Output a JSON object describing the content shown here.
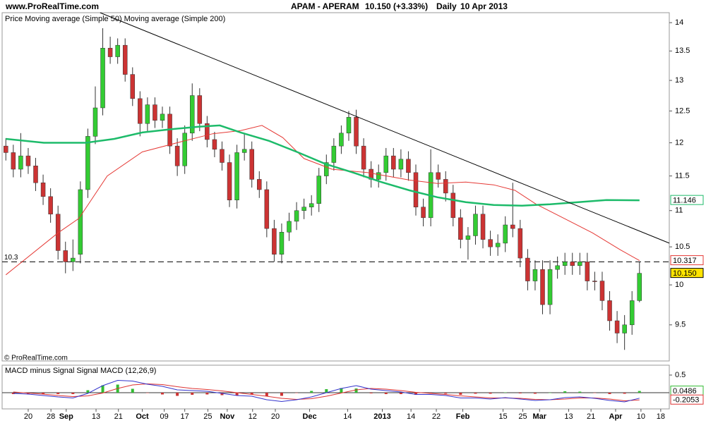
{
  "header": {
    "site": "www.ProRealTime.com",
    "instrument": "APAM - APERAM",
    "quote": "10.150 (+3.33%)",
    "period": "Daily",
    "date": "10 Apr 2013"
  },
  "copyright": "© ProRealTime.com",
  "chart_data": [
    {
      "type": "candlestick",
      "log_scale": true,
      "xlim": [
        -1,
        178
      ],
      "ylim": [
        9.07,
        14.18
      ],
      "yticks": [
        14,
        13.5,
        13,
        12.5,
        12,
        11.5,
        11,
        10.5,
        10,
        9.5
      ],
      "support_level": 10.3,
      "trendline": {
        "x": [
          25.3,
          178
        ],
        "values": [
          14.18,
          10.55
        ],
        "color": "#000000"
      },
      "candles": {
        "name": "Price",
        "up_color": "#33cc33",
        "down_color": "#cc3333",
        "last_color": "#ffe400",
        "last_label": "10.150",
        "x": [
          0,
          2,
          4,
          6,
          8,
          10,
          12,
          14,
          16,
          18,
          20,
          22,
          24,
          26,
          28,
          30,
          32,
          34,
          36,
          38,
          40,
          42,
          44,
          46,
          48,
          50,
          52,
          54,
          56,
          58,
          60,
          62,
          64,
          66,
          68,
          70,
          72,
          74,
          76,
          78,
          80,
          82,
          84,
          86,
          88,
          90,
          92,
          94,
          96,
          98,
          100,
          102,
          104,
          106,
          108,
          110,
          112,
          114,
          116,
          118,
          120,
          122,
          124,
          126,
          128,
          130,
          132,
          134,
          136,
          138,
          140,
          142,
          144,
          146,
          148,
          150,
          152,
          154,
          156,
          158,
          160,
          162,
          164,
          166,
          168,
          170
        ],
        "open": [
          11.95,
          11.85,
          11.6,
          11.8,
          11.65,
          11.4,
          11.2,
          10.95,
          10.45,
          10.3,
          10.4,
          11.3,
          12.1,
          12.55,
          13.55,
          13.4,
          13.6,
          13.1,
          12.7,
          12.3,
          12.6,
          12.35,
          12.45,
          11.95,
          11.65,
          12.15,
          12.75,
          12.3,
          12.05,
          11.9,
          11.7,
          11.15,
          11.85,
          11.9,
          11.45,
          11.3,
          10.75,
          10.4,
          10.7,
          10.85,
          11.0,
          11.05,
          11.1,
          11.5,
          11.7,
          11.95,
          12.15,
          12.4,
          11.95,
          11.6,
          11.45,
          11.55,
          11.8,
          11.6,
          11.75,
          11.55,
          11.05,
          10.9,
          11.55,
          11.45,
          11.25,
          10.9,
          10.6,
          10.65,
          10.95,
          10.6,
          10.5,
          10.55,
          10.8,
          10.75,
          10.35,
          10.05,
          10.2,
          9.75,
          10.2,
          10.25,
          10.3,
          10.25,
          10.3,
          10.05,
          10.05,
          9.8,
          9.55,
          9.4,
          9.5,
          9.8
        ],
        "high": [
          12.07,
          11.97,
          12.15,
          11.92,
          11.77,
          11.52,
          11.32,
          11.07,
          10.57,
          10.6,
          11.42,
          12.22,
          12.9,
          13.9,
          13.75,
          13.72,
          13.72,
          13.22,
          12.82,
          12.72,
          12.72,
          12.57,
          12.57,
          12.07,
          12.27,
          12.95,
          12.87,
          12.42,
          12.17,
          12.02,
          11.82,
          11.97,
          12.15,
          12.02,
          11.57,
          11.42,
          10.87,
          10.82,
          10.97,
          11.12,
          11.17,
          11.22,
          11.62,
          11.82,
          12.07,
          12.27,
          12.5,
          12.52,
          12.07,
          11.72,
          11.67,
          11.92,
          11.92,
          11.9,
          11.87,
          11.67,
          11.17,
          11.9,
          11.67,
          11.57,
          11.37,
          11.02,
          10.77,
          11.07,
          11.07,
          10.72,
          10.67,
          10.92,
          11.4,
          10.87,
          10.47,
          10.32,
          10.32,
          10.32,
          10.37,
          10.42,
          10.42,
          10.42,
          10.42,
          10.17,
          10.17,
          9.92,
          9.67,
          9.62,
          9.92,
          10.3
        ],
        "low": [
          11.73,
          11.48,
          11.48,
          11.53,
          11.28,
          11.08,
          10.83,
          10.33,
          10.15,
          10.18,
          10.28,
          11.18,
          11.98,
          12.43,
          13.28,
          13.28,
          12.98,
          12.58,
          12.1,
          12.18,
          12.23,
          12.23,
          11.83,
          11.5,
          11.53,
          12.03,
          12.18,
          11.93,
          11.78,
          11.58,
          11.05,
          11.03,
          11.73,
          11.33,
          11.18,
          10.63,
          10.3,
          10.28,
          10.58,
          10.73,
          10.88,
          10.93,
          10.98,
          11.38,
          11.58,
          11.83,
          12.03,
          11.83,
          11.48,
          11.33,
          11.33,
          11.43,
          11.48,
          11.48,
          11.43,
          10.93,
          10.78,
          10.78,
          11.33,
          11.13,
          10.78,
          10.48,
          10.33,
          10.53,
          10.48,
          10.38,
          10.38,
          10.43,
          10.63,
          10.23,
          9.93,
          9.93,
          9.63,
          9.63,
          10.08,
          10.13,
          10.13,
          10.13,
          9.93,
          9.93,
          9.68,
          9.43,
          9.28,
          9.2,
          9.38,
          9.78
        ],
        "close": [
          11.85,
          11.6,
          11.8,
          11.65,
          11.4,
          11.2,
          10.95,
          10.45,
          10.3,
          10.35,
          11.3,
          12.1,
          12.55,
          13.55,
          13.4,
          13.6,
          13.1,
          12.7,
          12.3,
          12.6,
          12.35,
          12.45,
          11.95,
          11.65,
          12.15,
          12.75,
          12.3,
          12.05,
          11.9,
          11.7,
          11.15,
          11.85,
          11.9,
          11.45,
          11.3,
          10.75,
          10.4,
          10.7,
          10.85,
          11.0,
          11.05,
          11.1,
          11.5,
          11.7,
          11.95,
          12.15,
          12.4,
          11.95,
          11.6,
          11.45,
          11.55,
          11.8,
          11.6,
          11.75,
          11.55,
          11.05,
          10.9,
          11.55,
          11.45,
          11.25,
          10.9,
          10.6,
          10.65,
          10.95,
          10.6,
          10.5,
          10.55,
          10.8,
          10.75,
          10.35,
          10.05,
          10.2,
          9.75,
          10.2,
          10.25,
          10.3,
          10.25,
          10.3,
          10.05,
          10.05,
          9.8,
          9.55,
          9.4,
          9.5,
          9.8,
          10.15
        ]
      },
      "series": [
        {
          "name": "Moving average (Simple 50)",
          "color": "#e53935",
          "line_width": 1,
          "show_last": true,
          "x": [
            0,
            14,
            19.6,
            27.2,
            36.6,
            47.9,
            55.5,
            63,
            68.7,
            74.3,
            80,
            87.5,
            97,
            108.3,
            115.8,
            123.4,
            130.9,
            136.6,
            142.3,
            149.8,
            157.4,
            164.9,
            170
          ],
          "values": [
            10.13,
            10.69,
            10.89,
            11.5,
            11.86,
            12.03,
            12.14,
            12.19,
            12.27,
            12.08,
            11.76,
            11.6,
            11.55,
            11.44,
            11.39,
            11.41,
            11.37,
            11.29,
            11.09,
            10.89,
            10.69,
            10.46,
            10.317
          ]
        },
        {
          "name": "Moving average (Simple 200)",
          "color": "#1dbb6a",
          "line_width": 2.5,
          "show_last": true,
          "x": [
            0,
            10.2,
            21.5,
            29.1,
            36.6,
            44.2,
            51.7,
            57.4,
            63,
            70.6,
            78.1,
            85.7,
            93.2,
            100.8,
            108.3,
            115.8,
            123.4,
            130.9,
            138.5,
            146,
            153.6,
            161.1,
            170
          ],
          "values": [
            12.06,
            12.0,
            12.0,
            12.06,
            12.16,
            12.21,
            12.25,
            12.27,
            12.16,
            12.03,
            11.86,
            11.68,
            11.55,
            11.41,
            11.29,
            11.19,
            11.12,
            11.08,
            11.07,
            11.09,
            11.12,
            11.15,
            11.146
          ]
        }
      ]
    },
    {
      "type": "macd",
      "xlim": [
        -1,
        178
      ],
      "ylim": [
        -0.46,
        0.78
      ],
      "yticks": [
        0.5
      ],
      "xticks": [
        {
          "value": 6,
          "label": "20"
        },
        {
          "value": 12.1,
          "label": "28"
        },
        {
          "value": 16.2,
          "label": "Sep"
        },
        {
          "value": 24.2,
          "label": "13"
        },
        {
          "value": 30.2,
          "label": "21"
        },
        {
          "value": 36.6,
          "label": "Oct"
        },
        {
          "value": 42.5,
          "label": "09"
        },
        {
          "value": 48,
          "label": "17"
        },
        {
          "value": 54.2,
          "label": "25"
        },
        {
          "value": 59.4,
          "label": "Nov"
        },
        {
          "value": 66.2,
          "label": "12"
        },
        {
          "value": 72.3,
          "label": "20"
        },
        {
          "value": 81.5,
          "label": "Dec"
        },
        {
          "value": 91.7,
          "label": "14"
        },
        {
          "value": 101,
          "label": "2013"
        },
        {
          "value": 108.7,
          "label": "14"
        },
        {
          "value": 115.5,
          "label": "22"
        },
        {
          "value": 122.6,
          "label": "Feb"
        },
        {
          "value": 133.4,
          "label": "15"
        },
        {
          "value": 138.7,
          "label": "25"
        },
        {
          "value": 143.2,
          "label": "Mar"
        },
        {
          "value": 151,
          "label": "13"
        },
        {
          "value": 157,
          "label": "21"
        },
        {
          "value": 163.6,
          "label": "Apr"
        },
        {
          "value": 170.4,
          "label": "10"
        },
        {
          "value": 175.7,
          "label": "18"
        }
      ],
      "x": [
        2,
        6,
        10,
        14,
        18,
        22,
        26,
        30,
        34,
        38,
        42,
        46,
        50,
        54,
        58,
        62,
        66,
        70,
        74,
        78,
        82,
        86,
        90,
        94,
        98,
        102,
        106,
        110,
        114,
        118,
        122,
        126,
        130,
        134,
        138,
        142,
        146,
        150,
        154,
        158,
        162,
        166,
        170
      ],
      "histogram": {
        "name": "MACD minus Signal",
        "up_color": "#33bb33",
        "down_color": "#cc3333",
        "show_last": true,
        "values": [
          -0.04,
          -0.03,
          -0.04,
          -0.04,
          -0.04,
          0.07,
          0.21,
          0.23,
          0.11,
          -0.01,
          -0.05,
          -0.09,
          -0.06,
          -0.05,
          -0.07,
          -0.08,
          -0.05,
          -0.1,
          -0.09,
          -0.01,
          0.05,
          0.1,
          0.13,
          0.12,
          -0.02,
          -0.04,
          -0.04,
          -0.06,
          -0.03,
          -0.03,
          -0.06,
          -0.03,
          -0.03,
          0.01,
          -0.02,
          -0.03,
          0.0,
          0.04,
          0.03,
          -0.01,
          -0.04,
          -0.03,
          0.0486
        ]
      },
      "series": [
        {
          "name": "Signal",
          "color": "#dd3333",
          "line_width": 1,
          "show_last": true,
          "values": [
            0.02,
            -0.01,
            -0.04,
            -0.08,
            -0.11,
            -0.09,
            -0.01,
            0.12,
            0.22,
            0.25,
            0.23,
            0.17,
            0.12,
            0.09,
            0.05,
            0.0,
            -0.05,
            -0.1,
            -0.16,
            -0.19,
            -0.17,
            -0.1,
            -0.01,
            0.08,
            0.12,
            0.1,
            0.06,
            0.01,
            -0.02,
            -0.05,
            -0.09,
            -0.12,
            -0.15,
            -0.15,
            -0.16,
            -0.19,
            -0.2,
            -0.18,
            -0.15,
            -0.15,
            -0.18,
            -0.23,
            -0.2053
          ]
        },
        {
          "name": "MACD (12,26,9)",
          "color": "#3333cc",
          "line_width": 1,
          "show_last": false,
          "values": [
            -0.02,
            -0.04,
            -0.08,
            -0.12,
            -0.15,
            -0.02,
            0.2,
            0.35,
            0.33,
            0.24,
            0.18,
            0.08,
            0.06,
            0.04,
            -0.02,
            -0.08,
            -0.1,
            -0.2,
            -0.25,
            -0.2,
            -0.12,
            0.0,
            0.12,
            0.2,
            0.1,
            0.06,
            0.02,
            -0.05,
            -0.05,
            -0.08,
            -0.15,
            -0.15,
            -0.18,
            -0.14,
            -0.18,
            -0.22,
            -0.2,
            -0.14,
            -0.12,
            -0.16,
            -0.22,
            -0.26,
            -0.1567
          ]
        }
      ]
    }
  ]
}
